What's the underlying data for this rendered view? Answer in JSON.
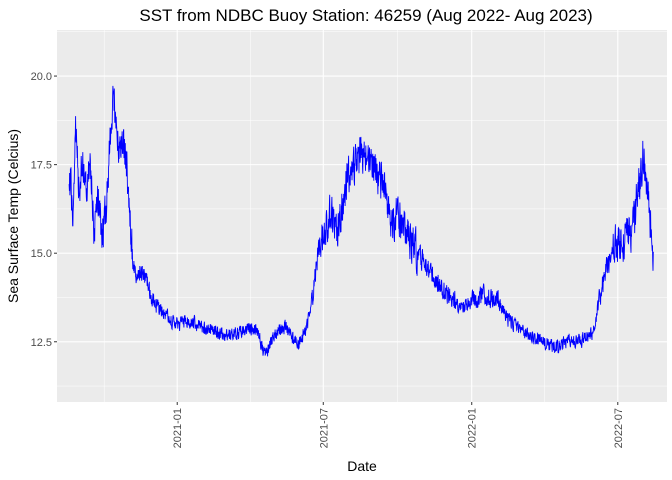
{
  "chart_data": {
    "type": "line",
    "title": "SST from NDBC Buoy Station: 46259 (Aug 2022- Aug 2023)",
    "xlabel": "Date",
    "ylabel": "Sea Surface Temp (Celcius)",
    "x_range": [
      "2020-08-05",
      "2022-08-31"
    ],
    "ylim": [
      10.8,
      21.3
    ],
    "x_ticks": [
      "2021-01",
      "2021-07",
      "2022-01",
      "2022-07"
    ],
    "y_ticks": [
      "12.5",
      "15.0",
      "17.5",
      "20.0"
    ],
    "y_tick_values": [
      12.5,
      15.0,
      17.5,
      20.0
    ],
    "line_color": "#0000ff",
    "panel_color": "#ebebeb",
    "grid": true,
    "legend": "none",
    "series": [
      {
        "x": [
          "2020-08-20",
          "2020-08-25",
          "2020-08-28",
          "2020-09-01",
          "2020-09-05",
          "2020-09-10",
          "2020-09-15",
          "2020-09-20",
          "2020-09-25",
          "2020-09-30",
          "2020-10-05",
          "2020-10-10",
          "2020-10-15",
          "2020-10-20",
          "2020-10-25",
          "2020-10-30",
          "2020-11-05",
          "2020-11-10",
          "2020-11-15",
          "2020-11-20",
          "2020-11-25",
          "2020-12-01",
          "2020-12-10",
          "2020-12-20",
          "2021-01-01",
          "2021-01-15",
          "2021-02-01",
          "2021-02-15",
          "2021-03-01",
          "2021-03-15",
          "2021-04-01",
          "2021-04-10",
          "2021-04-20",
          "2021-05-01",
          "2021-05-15",
          "2021-06-01",
          "2021-06-15",
          "2021-06-25",
          "2021-07-01",
          "2021-07-10",
          "2021-07-20",
          "2021-08-01",
          "2021-08-15",
          "2021-09-01",
          "2021-09-15",
          "2021-09-25",
          "2021-10-01",
          "2021-10-15",
          "2021-11-01",
          "2021-11-15",
          "2021-12-01",
          "2021-12-15",
          "2022-01-01",
          "2022-01-15",
          "2022-02-01",
          "2022-02-15",
          "2022-03-01",
          "2022-03-15",
          "2022-04-01",
          "2022-04-15",
          "2022-05-01",
          "2022-05-15",
          "2022-06-01",
          "2022-06-15",
          "2022-07-01",
          "2022-07-10",
          "2022-07-20",
          "2022-07-25",
          "2022-08-01",
          "2022-08-05",
          "2022-08-10",
          "2022-08-14"
        ],
        "y": [
          17.3,
          16.2,
          18.8,
          16.9,
          17.6,
          16.8,
          17.5,
          15.5,
          16.6,
          15.5,
          16.3,
          18.6,
          19.4,
          18.1,
          17.9,
          17.6,
          15.2,
          14.3,
          14.5,
          14.4,
          14.1,
          13.7,
          13.4,
          13.2,
          13.0,
          13.1,
          12.9,
          12.8,
          12.7,
          12.7,
          12.9,
          12.8,
          12.1,
          12.7,
          12.9,
          12.4,
          13.3,
          15.1,
          15.6,
          16.0,
          15.8,
          17.2,
          17.8,
          17.5,
          16.8,
          15.9,
          16.1,
          15.4,
          14.8,
          14.3,
          13.9,
          13.5,
          13.6,
          13.8,
          13.7,
          13.1,
          12.9,
          12.6,
          12.5,
          12.3,
          12.6,
          12.5,
          12.8,
          14.5,
          15.3,
          15.4,
          15.7,
          16.5,
          17.8,
          17.3,
          15.9,
          15.0
        ]
      }
    ]
  }
}
